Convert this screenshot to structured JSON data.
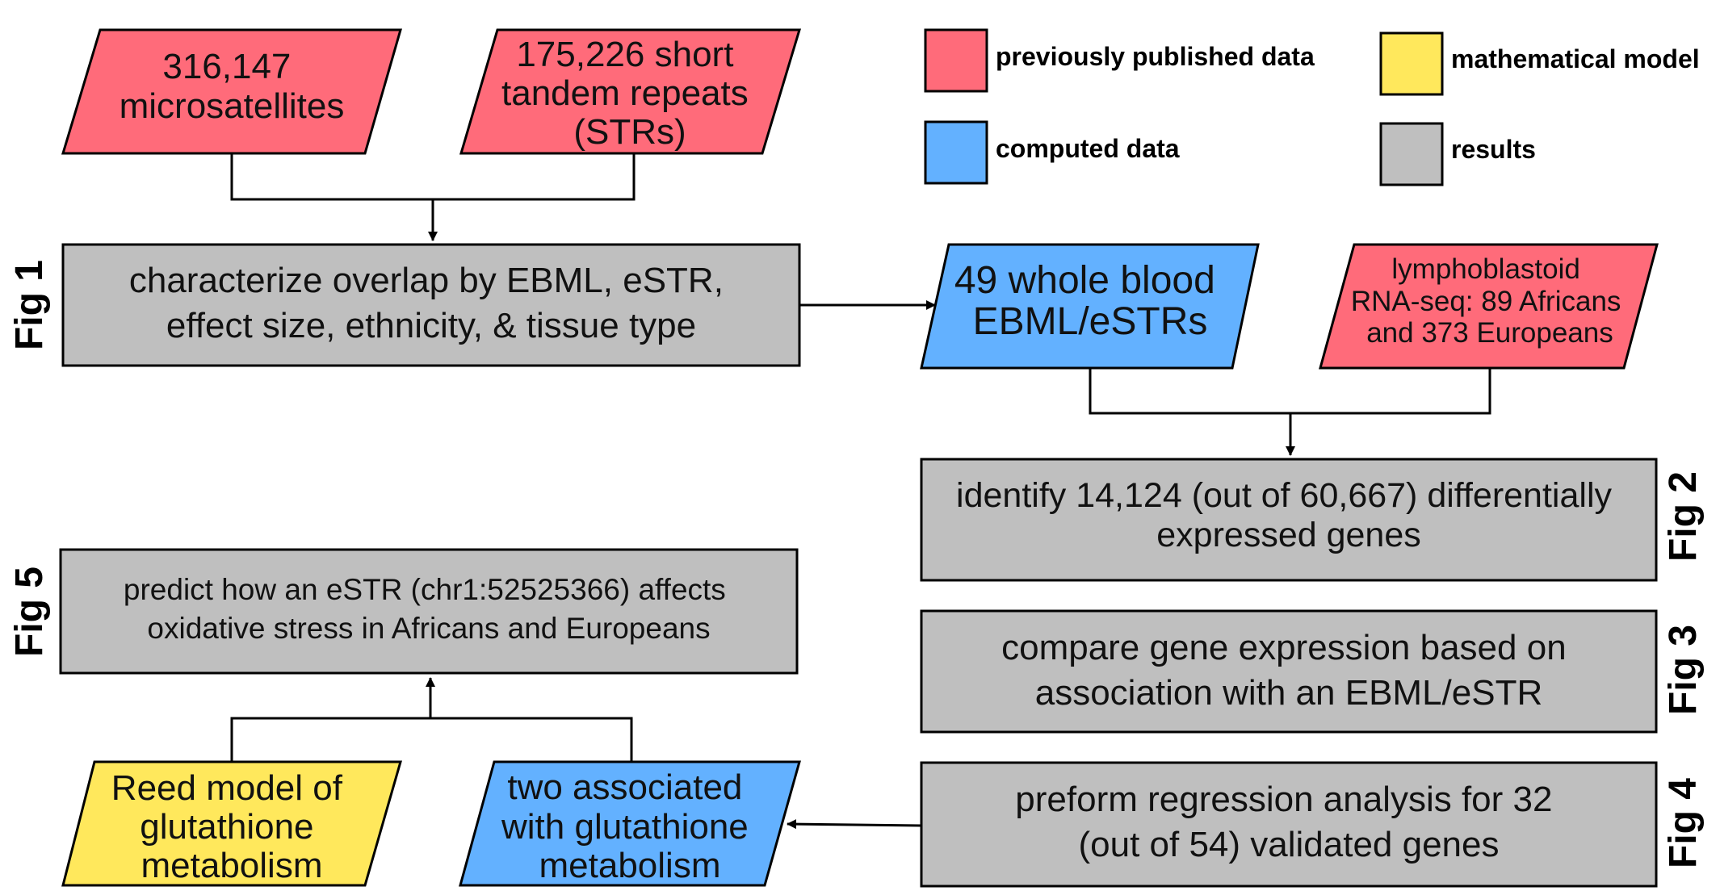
{
  "colors": {
    "published": "#FF6B7A",
    "computed": "#63B1FF",
    "model": "#FFE85C",
    "results": "#BFBFBF",
    "stroke": "#000000"
  },
  "legend": {
    "published": "previously published data",
    "model": "mathematical model",
    "computed": "computed data",
    "results": "results"
  },
  "nodes": {
    "microsatellites": {
      "kind": "published",
      "lines": [
        "316,147",
        "microsatellites"
      ]
    },
    "strs": {
      "kind": "published",
      "lines": [
        "175,226 short",
        "tandem repeats",
        "(STRs)"
      ]
    },
    "characterize": {
      "kind": "results",
      "lines": [
        "characterize overlap by EBML, eSTR,",
        "effect size, ethnicity, & tissue type"
      ]
    },
    "whole_blood": {
      "kind": "computed",
      "lines": [
        "49 whole blood",
        "EBML/eSTRs"
      ]
    },
    "lymphoblastoid": {
      "kind": "published",
      "lines": [
        "lymphoblastoid",
        "RNA-seq: 89 Africans",
        "and 373 Europeans"
      ]
    },
    "identify": {
      "kind": "results",
      "lines": [
        "identify 14,124 (out of 60,667) differentially",
        "expressed genes"
      ]
    },
    "compare": {
      "kind": "results",
      "lines": [
        "compare gene expression based on",
        "association with an EBML/eSTR"
      ]
    },
    "regression": {
      "kind": "results",
      "lines": [
        "preform regression analysis for 32",
        "(out of 54) validated genes"
      ]
    },
    "two_associated": {
      "kind": "computed",
      "lines": [
        "two associated",
        "with glutathione",
        "metabolism"
      ]
    },
    "reed_model": {
      "kind": "model",
      "lines": [
        "Reed model of",
        "glutathione",
        "metabolism"
      ]
    },
    "predict": {
      "kind": "results",
      "lines": [
        "predict how an eSTR (chr1:52525366) affects",
        "oxidative stress in Africans and Europeans"
      ]
    }
  },
  "figure_labels": {
    "fig1": "Fig 1",
    "fig2": "Fig 2",
    "fig3": "Fig 3",
    "fig4": "Fig 4",
    "fig5": "Fig 5"
  }
}
